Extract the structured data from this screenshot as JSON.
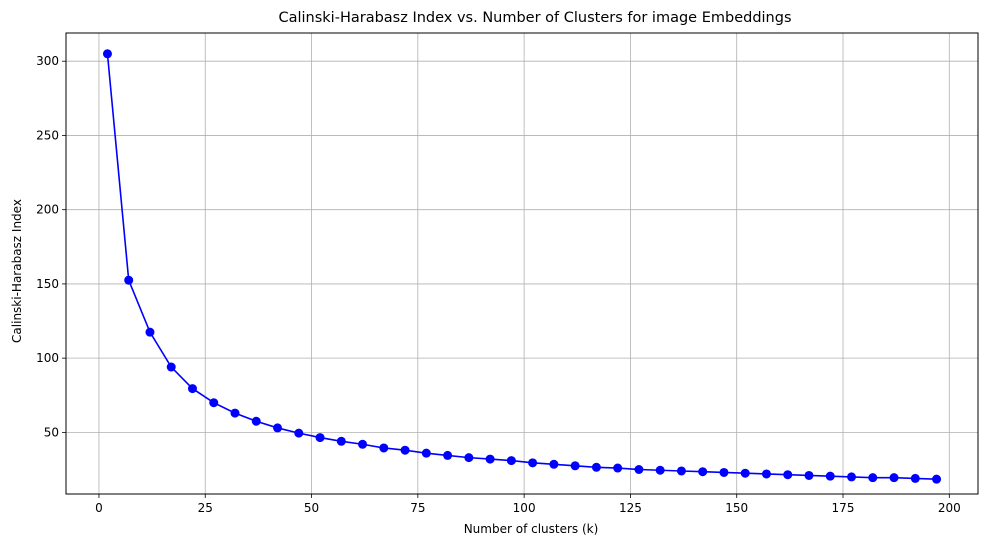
{
  "chart_data": {
    "type": "line",
    "title": "Calinski-Harabasz Index vs. Number of Clusters for image Embeddings",
    "xlabel": "Number of clusters (k)",
    "ylabel": "Calinski-Harabasz Index",
    "xlim": [
      -7.75,
      206.75
    ],
    "ylim": [
      8.5,
      319.0
    ],
    "xticks": [
      0,
      25,
      50,
      75,
      100,
      125,
      150,
      175,
      200
    ],
    "yticks": [
      50,
      100,
      150,
      200,
      250,
      300
    ],
    "grid": true,
    "marker": "circle",
    "color": "#0000ff",
    "series": [
      {
        "x": [
          2,
          7,
          12,
          17,
          22,
          27,
          32,
          37,
          42,
          47,
          52,
          57,
          62,
          67,
          72,
          77,
          82,
          87,
          92,
          97,
          102,
          107,
          112,
          117,
          122,
          127,
          132,
          137,
          142,
          147,
          152,
          157,
          162,
          167,
          172,
          177,
          182,
          187,
          192,
          197
        ],
        "y": [
          305,
          152.5,
          117.5,
          94,
          79.5,
          70,
          63,
          57.5,
          53,
          49.5,
          46.5,
          44,
          42,
          39.5,
          38,
          36,
          34.5,
          33,
          32,
          31,
          29.5,
          28.5,
          27.5,
          26.5,
          26,
          25,
          24.5,
          24,
          23.5,
          23,
          22.5,
          22,
          21.5,
          21,
          20.5,
          20,
          19.5,
          19.5,
          19,
          18.5
        ]
      }
    ]
  }
}
